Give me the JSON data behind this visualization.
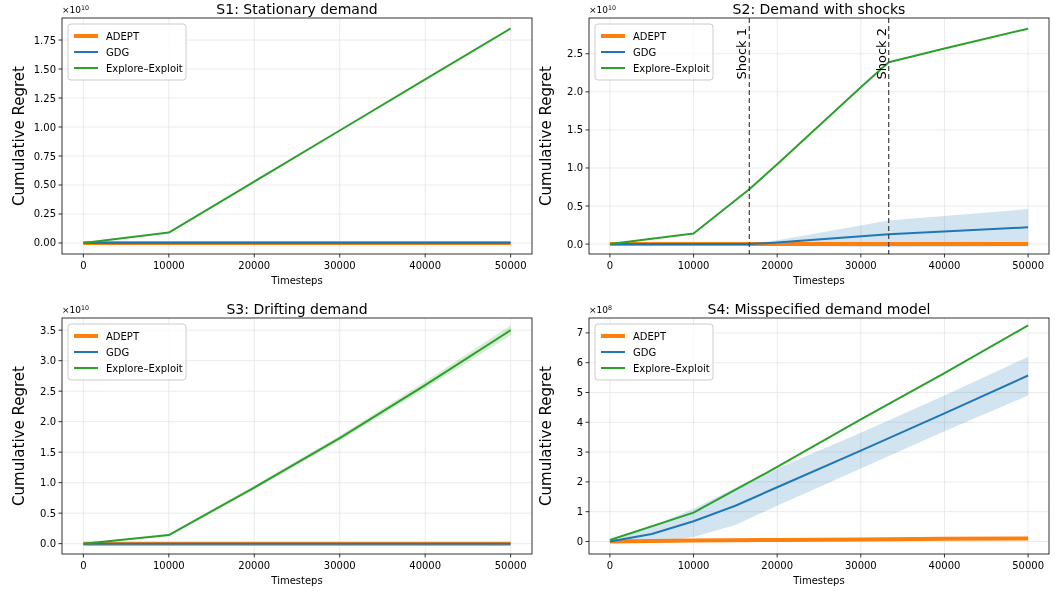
{
  "chart_data": [
    {
      "type": "line",
      "title": "S1: Stationary demand",
      "xlabel": "Timesteps",
      "ylabel": "Cumulative Regret",
      "annotations": [
        "×10$^{10}$"
      ],
      "legend": "top left",
      "grid": true,
      "line_style": "solid",
      "marker": "none",
      "x": [
        0,
        10000,
        20000,
        30000,
        40000,
        50000
      ],
      "xlim": [
        -2500,
        52500
      ],
      "xticks": [
        0,
        10000,
        20000,
        30000,
        40000,
        50000
      ],
      "ylim": [
        -0.095,
        1.94
      ],
      "yticks": [
        {
          "value": 0,
          "label": "0.00"
        },
        {
          "value": 0.25,
          "label": "0.25"
        },
        {
          "value": 0.5,
          "label": "0.50"
        },
        {
          "value": 0.75,
          "label": "0.75"
        },
        {
          "value": 1,
          "label": "1.00"
        },
        {
          "value": 1.25,
          "label": "1.25"
        },
        {
          "value": 1.5,
          "label": "1.50"
        },
        {
          "value": 1.75,
          "label": "1.75"
        }
      ],
      "series": [
        {
          "name": "ADEPT",
          "color": "#ff7f0e",
          "values": [
            0,
            0,
            0,
            0,
            0,
            0
          ]
        },
        {
          "name": "GDG",
          "color": "#1f77b4",
          "values": [
            0,
            0,
            0,
            0,
            0,
            0
          ]
        },
        {
          "name": "Explore–Exploit",
          "color": "#2ca02c",
          "values": [
            0,
            0.09,
            0.53,
            0.97,
            1.41,
            1.85
          ]
        }
      ]
    },
    {
      "type": "line",
      "title": "S2: Demand with shocks",
      "xlabel": "Timesteps",
      "ylabel": "Cumulative Regret",
      "annotations": [
        "×10$^{10}$"
      ],
      "legend": "top left",
      "grid": true,
      "line_style": "solid",
      "marker": "none",
      "xlim": [
        -2500,
        52500
      ],
      "xticks": [
        0,
        10000,
        20000,
        30000,
        40000,
        50000
      ],
      "ylim": [
        -0.13,
        2.97
      ],
      "yticks": [
        {
          "value": 0,
          "label": "0.0"
        },
        {
          "value": 0.5,
          "label": "0.5"
        },
        {
          "value": 1,
          "label": "1.0"
        },
        {
          "value": 1.5,
          "label": "1.5"
        },
        {
          "value": 2,
          "label": "2.0"
        },
        {
          "value": 2.5,
          "label": "2.5"
        }
      ],
      "ref_lines": [
        {
          "axis": "x",
          "value": 16667,
          "label": "Shock 1",
          "color": "#404040",
          "line_style": "dashed"
        },
        {
          "axis": "x",
          "value": 33333,
          "label": "Shock 2",
          "color": "#404040",
          "line_style": "dashed"
        }
      ],
      "series": [
        {
          "name": "ADEPT",
          "color": "#ff7f0e",
          "x": [
            0,
            10000,
            20000,
            30000,
            40000,
            50000
          ],
          "values": [
            0,
            0,
            0,
            0,
            0,
            0
          ]
        },
        {
          "name": "GDG",
          "color": "#1f77b4",
          "x": [
            0,
            10000,
            16667,
            20000,
            33333,
            50000
          ],
          "values": [
            0,
            0,
            0,
            0.02,
            0.13,
            0.22
          ],
          "lower": [
            0,
            0,
            0,
            -0.02,
            -0.04,
            -0.03
          ],
          "upper": [
            0,
            0,
            0.01,
            0.05,
            0.31,
            0.46
          ]
        },
        {
          "name": "Explore–Exploit",
          "color": "#2ca02c",
          "x": [
            0,
            10000,
            16667,
            20000,
            30000,
            33333,
            40000,
            50000
          ],
          "values": [
            0,
            0.14,
            0.72,
            1.05,
            2.06,
            2.39,
            2.57,
            2.83
          ]
        }
      ]
    },
    {
      "type": "line",
      "title": "S3: Drifting demand",
      "xlabel": "Timesteps",
      "ylabel": "Cumulative Regret",
      "annotations": [
        "×10$^{10}$"
      ],
      "legend": "top left",
      "grid": true,
      "line_style": "solid",
      "marker": "none",
      "x": [
        0,
        10000,
        20000,
        30000,
        40000,
        50000
      ],
      "xlim": [
        -2500,
        52500
      ],
      "xticks": [
        0,
        10000,
        20000,
        30000,
        40000,
        50000
      ],
      "ylim": [
        -0.17,
        3.7
      ],
      "yticks": [
        {
          "value": 0,
          "label": "0.0"
        },
        {
          "value": 0.5,
          "label": "0.5"
        },
        {
          "value": 1,
          "label": "1.0"
        },
        {
          "value": 1.5,
          "label": "1.5"
        },
        {
          "value": 2,
          "label": "2.0"
        },
        {
          "value": 2.5,
          "label": "2.5"
        },
        {
          "value": 3,
          "label": "3.0"
        },
        {
          "value": 3.5,
          "label": "3.5"
        }
      ],
      "series": [
        {
          "name": "ADEPT",
          "color": "#ff7f0e",
          "values": [
            0,
            0,
            0,
            0,
            0,
            0
          ]
        },
        {
          "name": "GDG",
          "color": "#1f77b4",
          "values": [
            0,
            0,
            0,
            0,
            0,
            0
          ]
        },
        {
          "name": "Explore–Exploit",
          "color": "#2ca02c",
          "values": [
            0,
            0.14,
            0.92,
            1.73,
            2.6,
            3.5
          ],
          "lower": [
            0,
            0.12,
            0.89,
            1.69,
            2.54,
            3.42
          ],
          "upper": [
            0,
            0.16,
            0.95,
            1.77,
            2.66,
            3.58
          ]
        }
      ]
    },
    {
      "type": "line",
      "title": "S4: Misspecified demand model",
      "xlabel": "Timesteps",
      "ylabel": "Cumulative Regret",
      "annotations": [
        "×10$^{8}$"
      ],
      "legend": "top left",
      "grid": true,
      "line_style": "solid",
      "marker": "none",
      "xlim": [
        -2500,
        52500
      ],
      "xticks": [
        0,
        10000,
        20000,
        30000,
        40000,
        50000
      ],
      "ylim": [
        -0.42,
        7.5
      ],
      "yticks": [
        0,
        1,
        2,
        3,
        4,
        5,
        6,
        7
      ],
      "series": [
        {
          "name": "ADEPT",
          "color": "#ff7f0e",
          "x": [
            0,
            10000,
            20000,
            30000,
            40000,
            50000
          ],
          "values": [
            0,
            0.03,
            0.05,
            0.07,
            0.09,
            0.1
          ]
        },
        {
          "name": "GDG",
          "color": "#1f77b4",
          "x": [
            0,
            5000,
            10000,
            15000,
            20000,
            30000,
            40000,
            50000
          ],
          "values": [
            0,
            0.25,
            0.68,
            1.2,
            1.82,
            3.05,
            4.3,
            5.57
          ],
          "lower": [
            0,
            -0.05,
            0.15,
            0.55,
            1.2,
            2.45,
            3.7,
            4.9
          ],
          "upper": [
            0,
            0.5,
            1.1,
            1.8,
            2.45,
            3.65,
            4.9,
            6.2
          ]
        },
        {
          "name": "Explore–Exploit",
          "color": "#2ca02c",
          "x": [
            0,
            10000,
            20000,
            30000,
            40000,
            50000
          ],
          "values": [
            0.05,
            0.97,
            2.5,
            4.1,
            5.65,
            7.25
          ]
        }
      ]
    }
  ]
}
